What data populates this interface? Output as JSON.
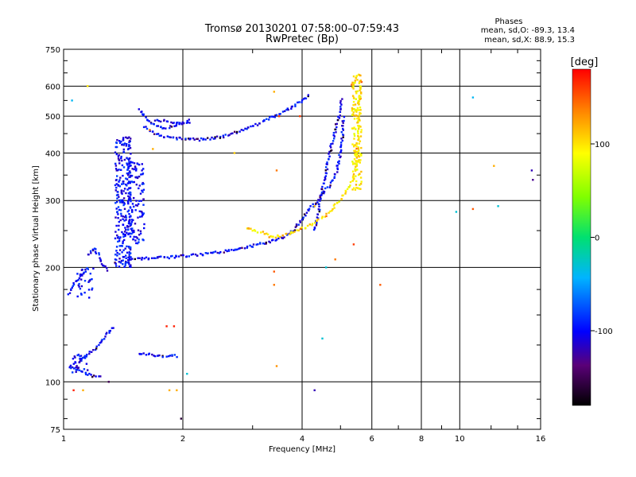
{
  "chart_data": {
    "type": "scatter",
    "title": "Tromsø 20130201 07:58:00–07:59:43",
    "subtitle": "RwPretec (Bp)",
    "xlabel": "Frequency [MHz]",
    "ylabel": "Stationary phase Virtual Height [km]",
    "x_scale": "log",
    "y_scale": "log",
    "xlim": [
      1,
      16
    ],
    "ylim": [
      75,
      750
    ],
    "x_ticks": [
      1,
      2,
      4,
      6,
      8,
      10,
      16
    ],
    "x_tick_labels": [
      "1",
      "2",
      "4",
      "6",
      "8",
      "10",
      "16"
    ],
    "y_ticks": [
      75,
      100,
      200,
      300,
      400,
      500,
      600,
      750
    ],
    "y_tick_labels": [
      "75",
      "100",
      "200",
      "300",
      "400",
      "500",
      "600",
      "750"
    ],
    "grid": true,
    "stats": {
      "heading": "Phases",
      "o_line": "mean, sd,O: -89.3, 13.4",
      "x_line": "mean, sd,X: 88.9, 15.3"
    },
    "colorbar": {
      "label": "[deg]",
      "range": [
        -180,
        180
      ],
      "ticks": [
        100,
        0,
        -100
      ],
      "tick_labels": [
        "100",
        "0",
        "-100"
      ]
    },
    "colors": {
      "o_mode": "#1e46e6",
      "x_mode": "#ffee00",
      "grid": "#000000"
    },
    "series": [
      {
        "mode": "O",
        "phase": -100,
        "traces": [
          {
            "x": [
              1.04,
              1.08,
              1.12,
              1.17,
              1.21,
              1.25
            ],
            "y": [
              110,
              108,
              106,
              104,
              103,
              104
            ]
          },
          {
            "x": [
              1.1,
              1.15,
              1.2,
              1.25,
              1.3,
              1.35
            ],
            "y": [
              115,
              118,
              122,
              128,
              135,
              140
            ]
          },
          {
            "x": [
              1.03,
              1.06,
              1.1,
              1.13,
              1.16
            ],
            "y": [
              170,
              180,
              190,
              195,
              198
            ]
          },
          {
            "x": [
              1.55,
              1.65,
              1.75,
              1.85,
              1.95
            ],
            "y": [
              118,
              118,
              117,
              117,
              117
            ]
          },
          {
            "x": [
              1.35,
              1.42,
              1.5,
              1.6,
              1.75,
              1.9,
              2.1,
              2.3,
              2.5,
              2.7,
              3.0,
              3.3,
              3.6,
              3.8,
              3.95,
              4.1
            ],
            "y": [
              205,
              208,
              210,
              211,
              212,
              213,
              215,
              217,
              220,
              223,
              228,
              233,
              240,
              250,
              262,
              278
            ]
          },
          {
            "x": [
              4.1,
              4.25,
              4.4,
              4.55,
              4.7,
              4.85,
              4.95,
              5.0,
              5.05,
              5.1
            ],
            "y": [
              280,
              290,
              300,
              315,
              330,
              350,
              375,
              400,
              440,
              500
            ]
          },
          {
            "x": [
              1.6,
              1.7,
              1.8,
              1.9,
              2.0,
              2.1,
              2.2,
              2.5,
              2.6,
              2.8,
              3.0,
              3.2,
              3.4,
              3.6,
              3.8,
              4.0,
              4.2
            ],
            "y": [
              470,
              450,
              440,
              438,
              436,
              435,
              434,
              440,
              445,
              460,
              470,
              485,
              500,
              515,
              530,
              550,
              570
            ]
          },
          {
            "x": [
              4.3,
              4.4,
              4.5,
              4.6,
              4.7,
              4.8,
              4.9,
              5.0,
              5.05
            ],
            "y": [
              250,
              280,
              320,
              360,
              400,
              440,
              480,
              520,
              560
            ]
          },
          {
            "x": [
              1.55,
              1.6,
              1.65,
              1.7,
              1.75,
              1.8,
              1.9,
              2.0,
              2.1
            ],
            "y": [
              520,
              500,
              485,
              475,
              470,
              465,
              470,
              480,
              490
            ]
          },
          {
            "x": [
              1.7,
              1.8,
              1.9,
              2.0,
              2.1
            ],
            "y": [
              490,
              485,
              482,
              480,
              478
            ]
          },
          {
            "x": [
              1.15,
              1.2,
              1.25,
              1.3
            ],
            "y": [
              215,
              225,
              205,
              195
            ]
          }
        ],
        "clusters": [
          {
            "x": [
              1.35,
              1.48
            ],
            "y": [
              200,
              440
            ],
            "count": 260
          },
          {
            "x": [
              1.45,
              1.6
            ],
            "y": [
              230,
              380
            ],
            "count": 120
          },
          {
            "x": [
              1.03,
              1.15
            ],
            "y": [
              105,
              118
            ],
            "count": 30
          },
          {
            "x": [
              1.08,
              1.2
            ],
            "y": [
              165,
              200
            ],
            "count": 30
          }
        ]
      },
      {
        "mode": "X",
        "phase": 100,
        "traces": [
          {
            "x": [
              2.9,
              3.0,
              3.1,
              3.2,
              3.3
            ],
            "y": [
              255,
              250,
              248,
              246,
              245
            ]
          },
          {
            "x": [
              3.3,
              3.5,
              3.7,
              3.9,
              4.1,
              4.3,
              4.5,
              4.7,
              4.9,
              5.1,
              5.3,
              5.45
            ],
            "y": [
              240,
              242,
              245,
              250,
              255,
              262,
              270,
              280,
              295,
              310,
              330,
              350
            ]
          },
          {
            "x": [
              5.45,
              5.5,
              5.55,
              5.58,
              5.6,
              5.6,
              5.62
            ],
            "y": [
              360,
              400,
              450,
              500,
              540,
              580,
              620
            ]
          },
          {
            "x": [
              5.35,
              5.45,
              5.55,
              5.6
            ],
            "y": [
              600,
              620,
              640,
              650
            ]
          }
        ],
        "clusters": [
          {
            "x": [
              5.35,
              5.65
            ],
            "y": [
              320,
              640
            ],
            "count": 120
          }
        ]
      }
    ],
    "scattered_points": [
      {
        "x": 1.15,
        "y": 600,
        "phase": 100
      },
      {
        "x": 1.05,
        "y": 550,
        "phase": -40
      },
      {
        "x": 3.4,
        "y": 580,
        "phase": 120
      },
      {
        "x": 3.45,
        "y": 360,
        "phase": 140
      },
      {
        "x": 3.4,
        "y": 195,
        "phase": 150
      },
      {
        "x": 3.4,
        "y": 180,
        "phase": 140
      },
      {
        "x": 3.45,
        "y": 110,
        "phase": 130
      },
      {
        "x": 4.3,
        "y": 95,
        "phase": -120
      },
      {
        "x": 4.5,
        "y": 130,
        "phase": -30
      },
      {
        "x": 4.6,
        "y": 200,
        "phase": -30
      },
      {
        "x": 4.3,
        "y": 290,
        "phase": 120
      },
      {
        "x": 6.3,
        "y": 180,
        "phase": 150
      },
      {
        "x": 10.8,
        "y": 560,
        "phase": -40
      },
      {
        "x": 9.8,
        "y": 280,
        "phase": -30
      },
      {
        "x": 10.8,
        "y": 285,
        "phase": 150
      },
      {
        "x": 12.2,
        "y": 370,
        "phase": 120
      },
      {
        "x": 12.5,
        "y": 290,
        "phase": -30
      },
      {
        "x": 15.2,
        "y": 360,
        "phase": -120
      },
      {
        "x": 15.3,
        "y": 340,
        "phase": -130
      },
      {
        "x": 2.05,
        "y": 105,
        "phase": -30
      },
      {
        "x": 1.98,
        "y": 80,
        "phase": -160
      },
      {
        "x": 1.82,
        "y": 140,
        "phase": 170
      },
      {
        "x": 1.9,
        "y": 140,
        "phase": 170
      },
      {
        "x": 1.85,
        "y": 95,
        "phase": 120
      },
      {
        "x": 1.93,
        "y": 95,
        "phase": 120
      },
      {
        "x": 1.06,
        "y": 95,
        "phase": 170
      },
      {
        "x": 1.12,
        "y": 95,
        "phase": 120
      },
      {
        "x": 1.3,
        "y": 100,
        "phase": -150
      },
      {
        "x": 1.65,
        "y": 460,
        "phase": 140
      },
      {
        "x": 1.68,
        "y": 410,
        "phase": 120
      },
      {
        "x": 2.7,
        "y": 400,
        "phase": 110
      },
      {
        "x": 3.5,
        "y": 500,
        "phase": 160
      },
      {
        "x": 4.85,
        "y": 210,
        "phase": 140
      },
      {
        "x": 3.95,
        "y": 500,
        "phase": 160
      },
      {
        "x": 5.4,
        "y": 230,
        "phase": 160
      }
    ]
  }
}
